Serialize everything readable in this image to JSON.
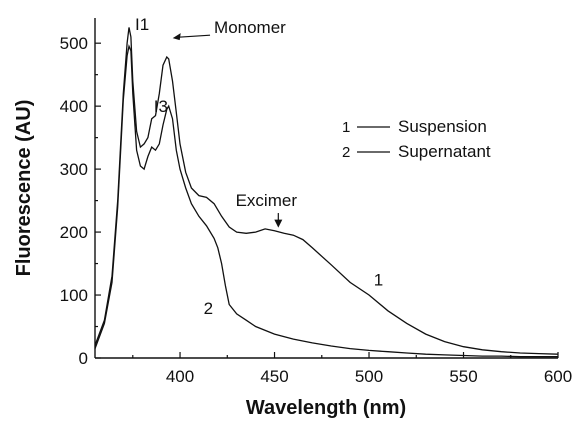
{
  "chart_data": {
    "type": "line",
    "title": "",
    "xlabel": "Wavelength (nm)",
    "ylabel": "Fluorescence (AU)",
    "xlim": [
      355,
      600
    ],
    "ylim": [
      0,
      540
    ],
    "xticks": [
      400,
      450,
      500,
      550,
      600
    ],
    "yticks": [
      0,
      100,
      200,
      300,
      400,
      500
    ],
    "grid": false,
    "legend": {
      "position": "right",
      "entries": [
        {
          "key": "1",
          "name": "Suspension"
        },
        {
          "key": "2",
          "name": "Supernatant"
        }
      ]
    },
    "series": [
      {
        "name": "Suspension",
        "label": "1",
        "label_at": [
          505,
          115
        ],
        "x": [
          355,
          360,
          364,
          367,
          370,
          372,
          373,
          374,
          375,
          377,
          379,
          381,
          383,
          385,
          387,
          389,
          391,
          393,
          394,
          396,
          398,
          400,
          403,
          406,
          410,
          414,
          418,
          422,
          426,
          430,
          435,
          440,
          445,
          450,
          455,
          460,
          465,
          470,
          480,
          490,
          500,
          510,
          520,
          530,
          540,
          550,
          560,
          570,
          580,
          590,
          600
        ],
        "y": [
          20,
          60,
          130,
          250,
          420,
          500,
          525,
          510,
          440,
          360,
          335,
          340,
          350,
          380,
          385,
          420,
          465,
          478,
          475,
          440,
          390,
          340,
          295,
          270,
          258,
          255,
          245,
          225,
          208,
          200,
          198,
          200,
          205,
          202,
          198,
          195,
          188,
          175,
          148,
          120,
          100,
          75,
          55,
          38,
          26,
          18,
          13,
          10,
          8,
          7,
          6
        ]
      },
      {
        "name": "Supernatant",
        "label": "2",
        "label_at": [
          415,
          70
        ],
        "x": [
          355,
          360,
          364,
          367,
          370,
          372,
          373,
          374,
          375,
          377,
          379,
          381,
          383,
          385,
          387,
          389,
          391,
          393,
          394,
          396,
          398,
          400,
          403,
          406,
          410,
          414,
          418,
          420,
          422,
          424,
          426,
          430,
          435,
          440,
          450,
          460,
          470,
          480,
          490,
          500,
          510,
          520,
          530,
          540,
          550,
          560,
          570,
          580,
          590,
          600
        ],
        "y": [
          15,
          55,
          120,
          240,
          410,
          480,
          495,
          488,
          420,
          330,
          305,
          300,
          320,
          335,
          330,
          340,
          370,
          395,
          400,
          380,
          330,
          300,
          270,
          245,
          225,
          210,
          190,
          175,
          150,
          115,
          85,
          70,
          60,
          50,
          38,
          30,
          24,
          19,
          15,
          12,
          10,
          8,
          6,
          5,
          4,
          3,
          3,
          2,
          2,
          2
        ]
      }
    ],
    "annotations": [
      {
        "text": "I1",
        "at": [
          373,
          535
        ]
      },
      {
        "text": "I3",
        "at": [
          384,
          400
        ]
      },
      {
        "text": "Monomer",
        "at": [
          400,
          500
        ],
        "arrow_to": [
          394,
          500
        ]
      },
      {
        "text": "Excimer",
        "at": [
          452,
          235
        ],
        "arrow_to": [
          452,
          207
        ]
      }
    ]
  }
}
